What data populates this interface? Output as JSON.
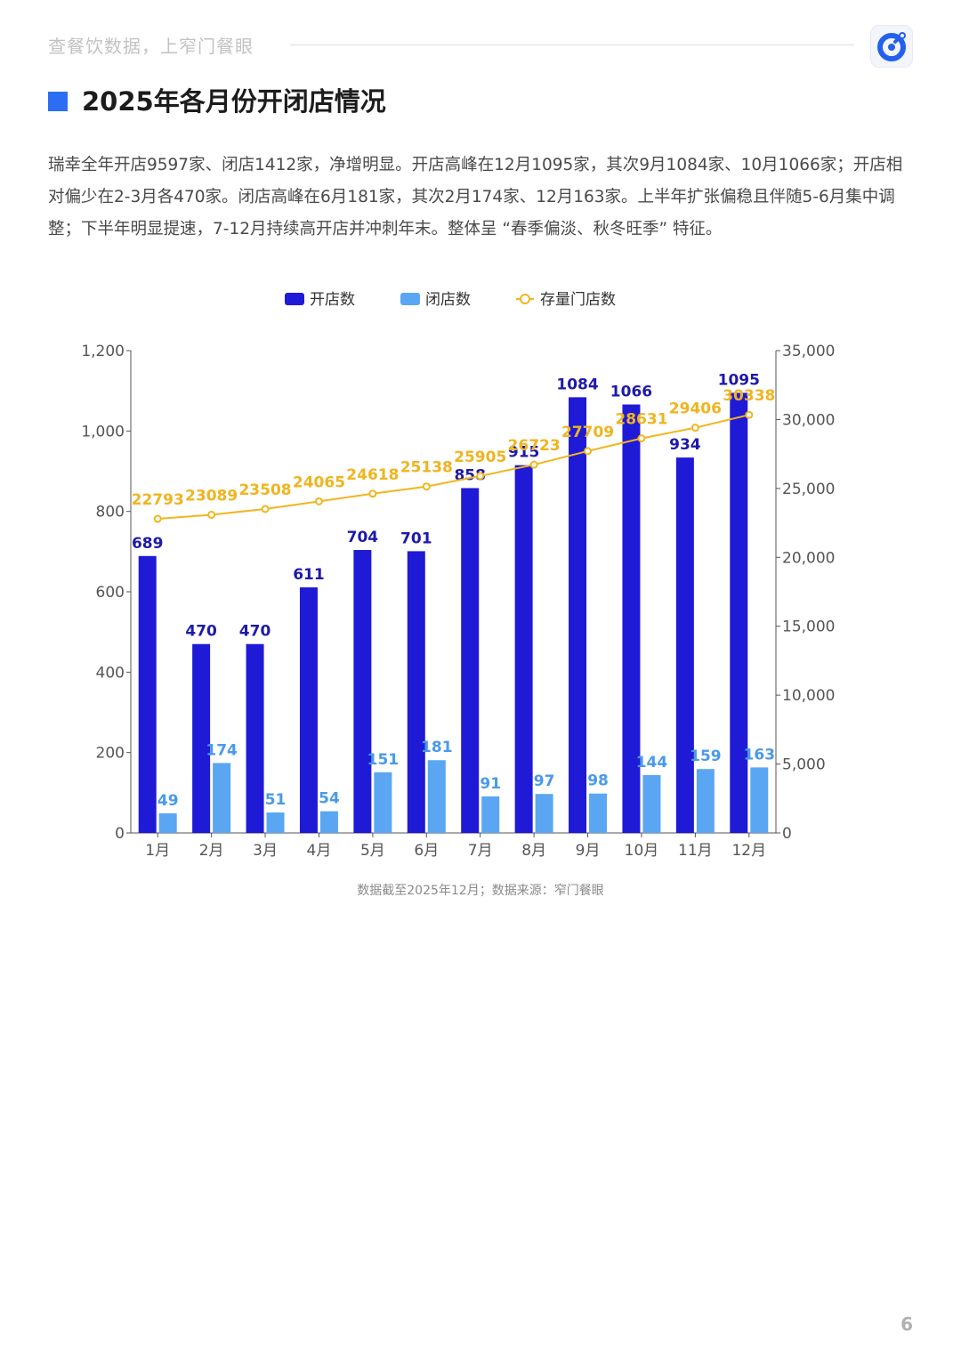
{
  "header": {
    "tagline": "查餐饮数据，上窄门餐眼",
    "logo_icon": "brand-logo-icon"
  },
  "section": {
    "title": "2025年各月份开闭店情况"
  },
  "description": "瑞幸全年开店9597家、闭店1412家，净增明显。开店高峰在12月1095家，其次9月1084家、10月1066家；开店相对偏少在2-3月各470家。闭店高峰在6月181家，其次2月174家、12月163家。上半年扩张偏稳且伴随5-6月集中调整；下半年明显提速，7-12月持续高开店并冲刺年末。整体呈 “春季偏淡、秋冬旺季” 特征。",
  "chart_data": {
    "type": "bar",
    "categories": [
      "1月",
      "2月",
      "3月",
      "4月",
      "5月",
      "6月",
      "7月",
      "8月",
      "9月",
      "10月",
      "11月",
      "12月"
    ],
    "series": [
      {
        "name": "开店数",
        "type": "bar",
        "axis": "left",
        "color": "#1f1ad6",
        "values": [
          689,
          470,
          470,
          611,
          704,
          701,
          858,
          915,
          1084,
          1066,
          934,
          1095
        ]
      },
      {
        "name": "闭店数",
        "type": "bar",
        "axis": "left",
        "color": "#5aa6f3",
        "values": [
          49,
          174,
          51,
          54,
          151,
          181,
          91,
          97,
          98,
          144,
          159,
          163
        ]
      },
      {
        "name": "存量门店数",
        "type": "line",
        "axis": "right",
        "color": "#f2b51f",
        "values": [
          22793,
          23089,
          23508,
          24065,
          24618,
          25138,
          25905,
          26723,
          27709,
          28631,
          29406,
          30338
        ]
      }
    ],
    "y_left": {
      "min": 0,
      "max": 1200,
      "ticks": [
        0,
        200,
        400,
        600,
        800,
        1000,
        1200
      ],
      "tick_labels": [
        "0",
        "200",
        "400",
        "600",
        "800",
        "1,000",
        "1,200"
      ]
    },
    "y_right": {
      "min": 0,
      "max": 35000,
      "ticks": [
        0,
        5000,
        10000,
        15000,
        20000,
        25000,
        30000,
        35000
      ],
      "tick_labels": [
        "0",
        "5,000",
        "10,000",
        "15,000",
        "20,000",
        "25,000",
        "30,000",
        "35,000"
      ]
    },
    "legend_position": "top-center",
    "grid": false
  },
  "footnote": "数据截至2025年12月；数据来源：窄门餐眼",
  "page_number": "6"
}
